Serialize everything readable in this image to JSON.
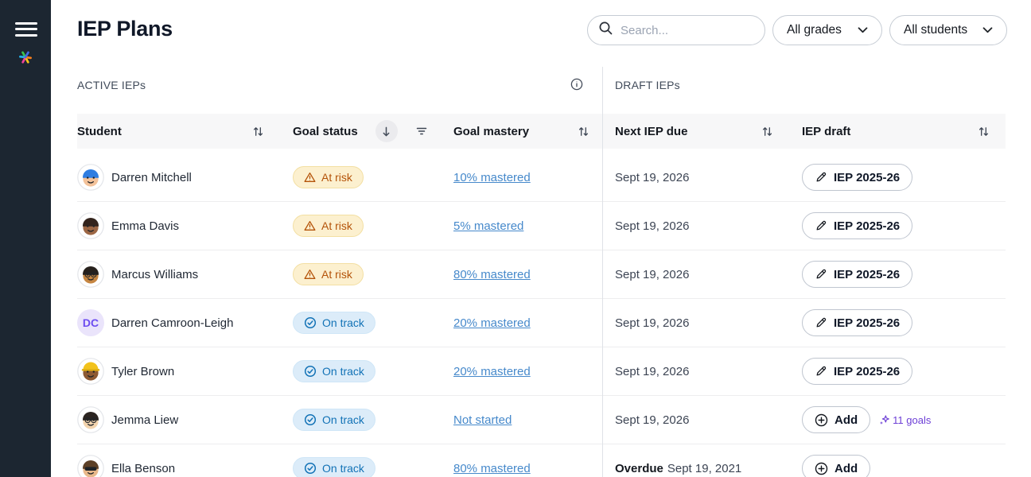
{
  "header": {
    "title": "IEP Plans",
    "search_placeholder": "Search...",
    "grades_filter": "All grades",
    "students_filter": "All students"
  },
  "sections": {
    "active_label": "ACTIVE IEPs",
    "draft_label": "DRAFT IEPs"
  },
  "table": {
    "columns": {
      "student": "Student",
      "goal_status": "Goal status",
      "goal_mastery": "Goal mastery",
      "next_iep_due": "Next IEP due",
      "iep_draft": "IEP draft"
    },
    "rows": [
      {
        "name": "Darren Mitchell",
        "avatar": {
          "type": "face",
          "skin": "#f3c29a",
          "hair": "#2f7de1",
          "acc": "none"
        },
        "status": "at_risk",
        "mastery": "10% mastered",
        "due": "Sept 19, 2026",
        "draft": {
          "type": "iep",
          "label": "IEP 2025-26"
        }
      },
      {
        "name": "Emma Davis",
        "avatar": {
          "type": "face",
          "skin": "#9c6644",
          "hair": "#33231c",
          "acc": "none"
        },
        "status": "at_risk",
        "mastery": "5% mastered",
        "due": "Sept 19, 2026",
        "draft": {
          "type": "iep",
          "label": "IEP 2025-26"
        }
      },
      {
        "name": "Marcus Williams",
        "avatar": {
          "type": "face",
          "skin": "#c68642",
          "hair": "#26201c",
          "acc": "glasses"
        },
        "status": "at_risk",
        "mastery": "80% mastered",
        "due": "Sept 19, 2026",
        "draft": {
          "type": "iep",
          "label": "IEP 2025-26"
        }
      },
      {
        "name": "Darren Camroon-Leigh",
        "avatar": {
          "type": "initials",
          "text": "DC",
          "bg": "#eae4fb",
          "color": "#6d4df0"
        },
        "status": "on_track",
        "mastery": "20% mastered",
        "due": "Sept 19, 2026",
        "draft": {
          "type": "iep",
          "label": "IEP 2025-26"
        }
      },
      {
        "name": "Tyler Brown",
        "avatar": {
          "type": "face",
          "skin": "#8d5a33",
          "hair": "",
          "acc": "hardhat"
        },
        "status": "on_track",
        "mastery": "20% mastered",
        "due": "Sept 19, 2026",
        "draft": {
          "type": "iep",
          "label": "IEP 2025-26"
        }
      },
      {
        "name": "Jemma Liew",
        "avatar": {
          "type": "face",
          "skin": "#f3d4ae",
          "hair": "#2b2420",
          "acc": "glasses"
        },
        "status": "on_track",
        "mastery": "Not started",
        "due": "Sept 19, 2026",
        "draft": {
          "type": "add",
          "goals": "11 goals"
        }
      },
      {
        "name": "Ella Benson",
        "avatar": {
          "type": "face",
          "skin": "#e8b88a",
          "hair": "#5d4027",
          "acc": "sunglasses"
        },
        "status": "on_track",
        "mastery": "80% mastered",
        "overdue": "Overdue",
        "due": "Sept 19, 2021",
        "draft": {
          "type": "add"
        }
      }
    ]
  },
  "badges": {
    "at_risk": "At risk",
    "on_track": "On track"
  },
  "buttons": {
    "add": "Add"
  },
  "colors": {
    "sidebar_bg": "#1c2631",
    "at_risk_bg": "#fcf0cf",
    "at_risk_text": "#b45309",
    "on_track_bg": "#dcecf9",
    "on_track_text": "#1272b6",
    "link_blue": "#4689cb",
    "goals_purple": "#6d3fd6"
  }
}
